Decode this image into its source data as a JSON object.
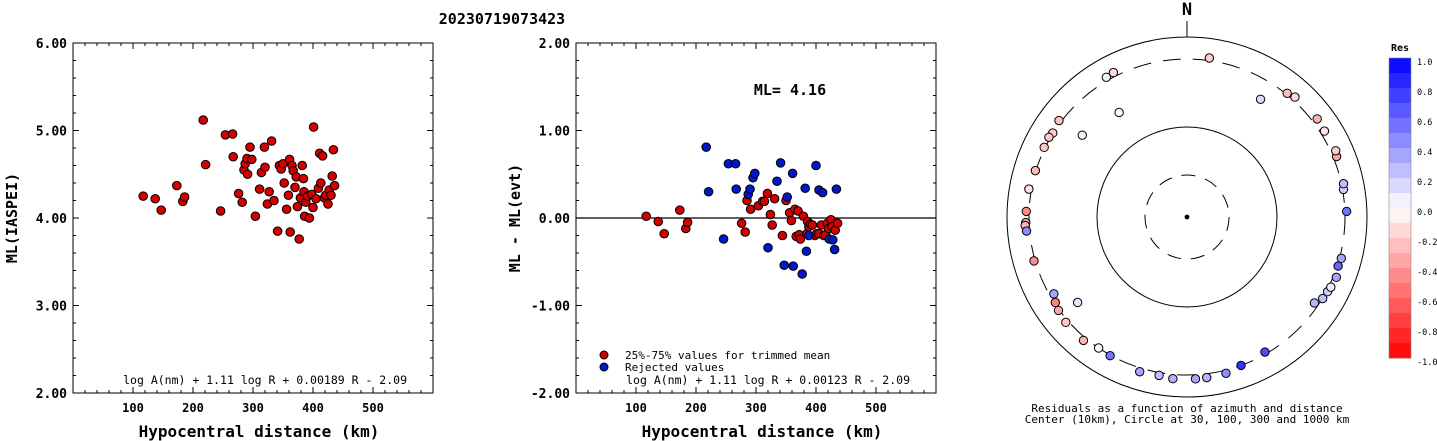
{
  "title": "20230719073423",
  "chart_data": [
    {
      "type": "scatter",
      "ylabel": "ML(IASPEI)",
      "xlabel": "Hypocentral distance (km)",
      "xlim": [
        0,
        600
      ],
      "ylim": [
        2.0,
        6.0
      ],
      "x_ticks": [
        "100",
        "200",
        "300",
        "400",
        "500"
      ],
      "y_ticks": [
        "6.00",
        "5.00",
        "4.00",
        "3.00",
        "2.00"
      ],
      "formula": "log A(nm) + 1.11 log R + 0.00189 R - 2.09",
      "point_color": "#d40000",
      "x": [
        117,
        137,
        147,
        173,
        183,
        186,
        217,
        221,
        246,
        254,
        266,
        267,
        276,
        282,
        285,
        287,
        290,
        291,
        295,
        298,
        304,
        311,
        314,
        319,
        320,
        324,
        327,
        331,
        335,
        341,
        344,
        347,
        350,
        352,
        356,
        359,
        361,
        362,
        365,
        367,
        370,
        372,
        374,
        377,
        379,
        382,
        384,
        385,
        386,
        388,
        391,
        394,
        398,
        400,
        401,
        405,
        409,
        411,
        413,
        416,
        419,
        421,
        425,
        427,
        430,
        432,
        434,
        436
      ],
      "y": [
        4.25,
        4.22,
        4.09,
        4.37,
        4.19,
        4.24,
        5.12,
        4.61,
        4.08,
        4.95,
        4.96,
        4.7,
        4.28,
        4.18,
        4.55,
        4.62,
        4.68,
        4.5,
        4.81,
        4.67,
        4.02,
        4.33,
        4.52,
        4.81,
        4.58,
        4.16,
        4.3,
        4.88,
        4.2,
        3.85,
        4.6,
        4.56,
        4.62,
        4.4,
        4.1,
        4.26,
        4.67,
        3.84,
        4.6,
        4.54,
        4.35,
        4.47,
        4.13,
        3.76,
        4.23,
        4.6,
        4.45,
        4.3,
        4.02,
        4.18,
        4.25,
        4.0,
        4.27,
        4.12,
        5.04,
        4.22,
        4.34,
        4.74,
        4.4,
        4.71,
        4.23,
        4.26,
        4.16,
        4.32,
        4.26,
        4.48,
        4.78,
        4.37
      ]
    },
    {
      "type": "scatter",
      "ylabel": "ML - ML(evt)",
      "xlabel": "Hypocentral distance (km)",
      "xlim": [
        0,
        600
      ],
      "ylim": [
        -2.0,
        2.0
      ],
      "x_ticks": [
        "100",
        "200",
        "300",
        "400",
        "500"
      ],
      "y_ticks": [
        "2.00",
        "1.00",
        "0.00",
        "-1.00",
        "-2.00"
      ],
      "annotation": "ML= 4.16",
      "formula": "log A(nm) + 1.11 log R + 0.00123 R - 2.09",
      "series": [
        {
          "name": "25%-75% values for trimmed mean",
          "color": "#d40000",
          "x": [
            117,
            137,
            147,
            173,
            183,
            186,
            276,
            282,
            285,
            291,
            304,
            311,
            314,
            319,
            324,
            327,
            331,
            344,
            350,
            356,
            359,
            365,
            367,
            370,
            372,
            374,
            379,
            385,
            386,
            388,
            391,
            394,
            398,
            401,
            405,
            409,
            413,
            416,
            419,
            421,
            425,
            427,
            432,
            436
          ],
          "y": [
            0.02,
            -0.04,
            -0.18,
            0.09,
            -0.12,
            -0.05,
            -0.06,
            -0.16,
            0.2,
            0.1,
            0.14,
            0.19,
            0.19,
            0.28,
            0.04,
            -0.08,
            0.22,
            -0.2,
            0.2,
            0.06,
            -0.03,
            0.1,
            -0.21,
            0.08,
            -0.19,
            -0.24,
            0.02,
            -0.18,
            -0.04,
            -0.1,
            -0.07,
            -0.08,
            -0.2,
            -0.18,
            -0.18,
            -0.08,
            -0.2,
            -0.19,
            -0.06,
            -0.12,
            -0.02,
            -0.1,
            -0.14,
            -0.06
          ]
        },
        {
          "name": "Rejected values",
          "color": "#0018c8",
          "x": [
            217,
            221,
            246,
            254,
            266,
            267,
            287,
            290,
            295,
            298,
            320,
            335,
            341,
            347,
            352,
            361,
            362,
            377,
            382,
            384,
            388,
            400,
            405,
            411,
            422,
            428,
            431,
            434
          ],
          "y": [
            0.81,
            0.3,
            -0.24,
            0.62,
            0.62,
            0.33,
            0.27,
            0.33,
            0.46,
            0.51,
            -0.34,
            0.42,
            0.63,
            -0.54,
            0.24,
            0.51,
            -0.55,
            -0.64,
            0.34,
            -0.38,
            -0.2,
            0.6,
            0.32,
            0.29,
            -0.24,
            -0.25,
            -0.36,
            0.33
          ]
        }
      ]
    },
    {
      "type": "scatter",
      "subtype": "polar",
      "north_label": "N",
      "caption_lines": [
        "Residuals as a function of azimuth and distance",
        "Center (10km), Circle at 30, 100, 300 and 1000 km"
      ],
      "rings_km": [
        30,
        100,
        300,
        1000
      ],
      "colorbar": {
        "title": "Res",
        "labels": [
          "1.0",
          "0.8",
          "0.6",
          "0.4",
          "0.2",
          "0.0",
          "-0.2",
          "-0.4",
          "-0.6",
          "-0.8",
          "-1.0"
        ],
        "max_color": "#0000ff",
        "min_color": "#ff0000"
      },
      "points": [
        {
          "az": 330,
          "dist": 360,
          "res": 0.05
        },
        {
          "az": 333,
          "dist": 375,
          "res": -0.15
        },
        {
          "az": 302,
          "dist": 305,
          "res": -0.18
        },
        {
          "az": 307,
          "dist": 340,
          "res": -0.25
        },
        {
          "az": 300,
          "dist": 325,
          "res": -0.2
        },
        {
          "az": 296,
          "dist": 315,
          "res": -0.22
        },
        {
          "az": 287,
          "dist": 310,
          "res": -0.28
        },
        {
          "az": 280,
          "dist": 345,
          "res": -0.12
        },
        {
          "az": 272,
          "dist": 350,
          "res": -0.45
        },
        {
          "az": 268,
          "dist": 360,
          "res": -0.35
        },
        {
          "az": 267,
          "dist": 375,
          "res": -0.3
        },
        {
          "az": 265,
          "dist": 355,
          "res": 0.45
        },
        {
          "az": 254,
          "dist": 320,
          "res": -0.45
        },
        {
          "az": 237,
          "dist": 295,
          "res": -0.5
        },
        {
          "az": 234,
          "dist": 315,
          "res": -0.35
        },
        {
          "az": 240,
          "dist": 280,
          "res": 0.35
        },
        {
          "az": 232,
          "dist": 220,
          "res": 0.1
        },
        {
          "az": 229,
          "dist": 345,
          "res": -0.22
        },
        {
          "az": 220,
          "dist": 355,
          "res": -0.3
        },
        {
          "az": 214,
          "dist": 300,
          "res": 0.02
        },
        {
          "az": 209,
          "dist": 310,
          "res": 0.55
        },
        {
          "az": 197,
          "dist": 370,
          "res": 0.35
        },
        {
          "az": 190,
          "dist": 350,
          "res": 0.25
        },
        {
          "az": 185,
          "dist": 380,
          "res": 0.3
        },
        {
          "az": 177,
          "dist": 375,
          "res": 0.35
        },
        {
          "az": 173,
          "dist": 370,
          "res": 0.3
        },
        {
          "az": 166,
          "dist": 355,
          "res": 0.45
        },
        {
          "az": 160,
          "dist": 300,
          "res": 0.8
        },
        {
          "az": 150,
          "dist": 290,
          "res": 0.7
        },
        {
          "az": 124,
          "dist": 280,
          "res": 0.3
        },
        {
          "az": 121,
          "dist": 305,
          "res": 0.25
        },
        {
          "az": 118,
          "dist": 320,
          "res": 0.2
        },
        {
          "az": 116,
          "dist": 335,
          "res": 0.05
        },
        {
          "az": 112,
          "dist": 355,
          "res": 0.35
        },
        {
          "az": 108,
          "dist": 315,
          "res": 0.6
        },
        {
          "az": 105,
          "dist": 330,
          "res": 0.35
        },
        {
          "az": 88,
          "dist": 330,
          "res": 0.55
        },
        {
          "az": 80,
          "dist": 315,
          "res": 0.2
        },
        {
          "az": 78,
          "dist": 335,
          "res": 0.25
        },
        {
          "az": 68,
          "dist": 360,
          "res": -0.35
        },
        {
          "az": 66,
          "dist": 390,
          "res": -0.2
        },
        {
          "az": 58,
          "dist": 375,
          "res": -0.1
        },
        {
          "az": 53,
          "dist": 395,
          "res": -0.3
        },
        {
          "az": 42,
          "dist": 360,
          "res": -0.15
        },
        {
          "az": 39,
          "dist": 320,
          "res": -0.25
        },
        {
          "az": 32,
          "dist": 220,
          "res": 0.15
        },
        {
          "az": 327,
          "dist": 175,
          "res": 0.0
        },
        {
          "az": 308,
          "dist": 200,
          "res": 0.05
        },
        {
          "az": 8,
          "dist": 345,
          "res": -0.2
        }
      ]
    }
  ]
}
